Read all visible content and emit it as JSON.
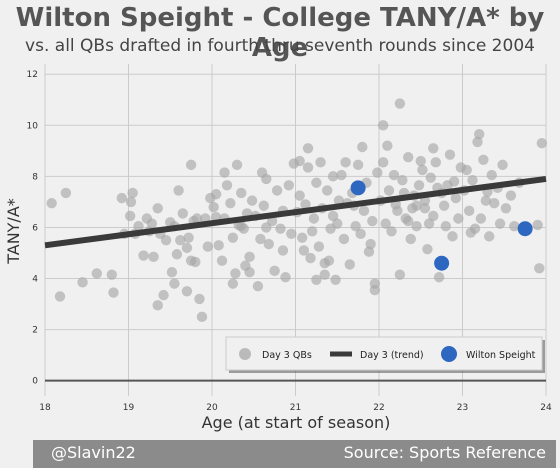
{
  "header": {
    "title": "Wilton Speight - College TANY/A* by Age",
    "subtitle": "vs. all QBs drafted in fourth thru seventh rounds since 2004"
  },
  "footer": {
    "handle": "@Slavin22",
    "source": "Source: Sports Reference"
  },
  "colors": {
    "background": "#f0f0f0",
    "scatter": "#a8a8a8",
    "trend": "#3a3a3a",
    "highlight": "#2e67c0",
    "grid": "#cbcbcb"
  },
  "chart_data": {
    "type": "scatter",
    "xlabel": "Age (at start of season)",
    "ylabel": "TANY/A*",
    "xlim": [
      18,
      24
    ],
    "ylim": [
      -0.6,
      12.4
    ],
    "xticks": [
      18,
      19,
      20,
      21,
      22,
      23,
      24
    ],
    "yticks": [
      0,
      2,
      4,
      6,
      8,
      10,
      12
    ],
    "grid": true,
    "legend_position": "bottom-right",
    "legend": [
      "Day 3 QBs",
      "Day 3 (trend)",
      "Wilton Speight"
    ],
    "trend": {
      "x": [
        18,
        24
      ],
      "y": [
        5.3,
        7.9
      ]
    },
    "highlight": {
      "name": "Wilton Speight",
      "points": [
        [
          21.75,
          7.55
        ],
        [
          22.75,
          4.6
        ],
        [
          23.75,
          5.95
        ]
      ]
    },
    "series": [
      {
        "name": "Day 3 QBs",
        "points": [
          [
            18.08,
            6.95
          ],
          [
            18.18,
            3.3
          ],
          [
            18.25,
            7.35
          ],
          [
            18.45,
            3.85
          ],
          [
            18.62,
            4.2
          ],
          [
            18.82,
            3.45
          ],
          [
            18.8,
            4.15
          ],
          [
            18.92,
            7.15
          ],
          [
            18.95,
            5.75
          ],
          [
            19.02,
            6.45
          ],
          [
            19.03,
            7.0
          ],
          [
            19.05,
            7.35
          ],
          [
            19.08,
            5.75
          ],
          [
            19.12,
            6.05
          ],
          [
            19.18,
            4.9
          ],
          [
            19.22,
            6.35
          ],
          [
            19.25,
            5.85
          ],
          [
            19.28,
            6.15
          ],
          [
            19.3,
            4.85
          ],
          [
            19.35,
            6.75
          ],
          [
            19.38,
            5.75
          ],
          [
            19.35,
            2.95
          ],
          [
            19.42,
            3.35
          ],
          [
            19.45,
            5.5
          ],
          [
            19.5,
            6.2
          ],
          [
            19.52,
            4.25
          ],
          [
            19.55,
            3.8
          ],
          [
            19.58,
            4.95
          ],
          [
            19.62,
            5.5
          ],
          [
            19.65,
            6.55
          ],
          [
            19.6,
            7.45
          ],
          [
            19.7,
            5.2
          ],
          [
            19.7,
            3.5
          ],
          [
            19.75,
            4.7
          ],
          [
            19.78,
            6.25
          ],
          [
            19.82,
            6.35
          ],
          [
            19.85,
            3.2
          ],
          [
            19.88,
            2.5
          ],
          [
            19.92,
            6.35
          ],
          [
            19.95,
            5.25
          ],
          [
            19.98,
            7.15
          ],
          [
            19.75,
            8.45
          ],
          [
            19.72,
            5.6
          ],
          [
            19.8,
            4.65
          ],
          [
            19.55,
            6.05
          ],
          [
            20.02,
            6.8
          ],
          [
            20.05,
            7.3
          ],
          [
            20.08,
            5.3
          ],
          [
            20.12,
            4.7
          ],
          [
            20.15,
            6.35
          ],
          [
            20.18,
            7.65
          ],
          [
            20.22,
            6.95
          ],
          [
            20.25,
            5.6
          ],
          [
            20.28,
            4.2
          ],
          [
            20.32,
            6.1
          ],
          [
            20.35,
            7.35
          ],
          [
            20.38,
            5.95
          ],
          [
            20.42,
            6.55
          ],
          [
            20.45,
            4.85
          ],
          [
            20.48,
            7.05
          ],
          [
            20.52,
            6.45
          ],
          [
            20.55,
            3.7
          ],
          [
            20.58,
            5.55
          ],
          [
            20.62,
            6.85
          ],
          [
            20.65,
            7.9
          ],
          [
            20.68,
            5.35
          ],
          [
            20.72,
            6.25
          ],
          [
            20.75,
            4.3
          ],
          [
            20.78,
            7.45
          ],
          [
            20.82,
            5.95
          ],
          [
            20.85,
            6.65
          ],
          [
            20.88,
            4.05
          ],
          [
            20.92,
            7.65
          ],
          [
            20.95,
            5.75
          ],
          [
            20.98,
            8.5
          ],
          [
            20.15,
            8.15
          ],
          [
            20.25,
            3.8
          ],
          [
            20.35,
            6.05
          ],
          [
            20.45,
            4.25
          ],
          [
            20.65,
            6.0
          ],
          [
            20.85,
            5.1
          ],
          [
            20.3,
            8.45
          ],
          [
            20.6,
            8.15
          ],
          [
            20.05,
            6.4
          ],
          [
            20.4,
            4.5
          ],
          [
            21.02,
            6.6
          ],
          [
            21.05,
            7.25
          ],
          [
            21.08,
            5.6
          ],
          [
            21.12,
            6.9
          ],
          [
            21.15,
            8.35
          ],
          [
            21.18,
            4.8
          ],
          [
            21.22,
            6.35
          ],
          [
            21.25,
            7.75
          ],
          [
            21.28,
            5.25
          ],
          [
            21.32,
            6.75
          ],
          [
            21.35,
            4.15
          ],
          [
            21.38,
            7.45
          ],
          [
            21.42,
            5.95
          ],
          [
            21.45,
            6.45
          ],
          [
            21.48,
            3.95
          ],
          [
            21.52,
            7.05
          ],
          [
            21.55,
            8.05
          ],
          [
            21.58,
            5.55
          ],
          [
            21.62,
            6.95
          ],
          [
            21.65,
            4.55
          ],
          [
            21.68,
            7.35
          ],
          [
            21.72,
            6.05
          ],
          [
            21.75,
            8.45
          ],
          [
            21.78,
            5.75
          ],
          [
            21.82,
            6.65
          ],
          [
            21.85,
            7.75
          ],
          [
            21.88,
            5.05
          ],
          [
            21.92,
            6.25
          ],
          [
            21.95,
            3.55
          ],
          [
            21.98,
            8.15
          ],
          [
            21.1,
            5.1
          ],
          [
            21.15,
            9.1
          ],
          [
            21.2,
            5.85
          ],
          [
            21.3,
            8.55
          ],
          [
            21.4,
            4.7
          ],
          [
            21.5,
            6.15
          ],
          [
            21.6,
            8.55
          ],
          [
            21.7,
            6.85
          ],
          [
            21.8,
            9.15
          ],
          [
            21.9,
            5.35
          ],
          [
            21.05,
            8.6
          ],
          [
            21.35,
            4.6
          ],
          [
            21.45,
            8.0
          ],
          [
            21.25,
            3.95
          ],
          [
            21.95,
            3.8
          ],
          [
            22.02,
            7.05
          ],
          [
            22.05,
            8.55
          ],
          [
            22.08,
            6.15
          ],
          [
            22.12,
            7.45
          ],
          [
            22.15,
            5.85
          ],
          [
            22.18,
            8.05
          ],
          [
            22.22,
            6.65
          ],
          [
            22.25,
            10.85
          ],
          [
            22.28,
            7.85
          ],
          [
            22.32,
            6.35
          ],
          [
            22.35,
            8.75
          ],
          [
            22.38,
            5.55
          ],
          [
            22.42,
            7.25
          ],
          [
            22.45,
            6.05
          ],
          [
            22.48,
            7.65
          ],
          [
            22.52,
            8.25
          ],
          [
            22.55,
            6.75
          ],
          [
            22.58,
            5.15
          ],
          [
            22.62,
            7.95
          ],
          [
            22.65,
            6.45
          ],
          [
            22.68,
            8.55
          ],
          [
            22.72,
            4.05
          ],
          [
            22.75,
            7.35
          ],
          [
            22.78,
            6.85
          ],
          [
            22.82,
            7.65
          ],
          [
            22.85,
            8.85
          ],
          [
            22.88,
            5.65
          ],
          [
            22.92,
            7.15
          ],
          [
            22.95,
            6.35
          ],
          [
            22.98,
            8.35
          ],
          [
            22.1,
            9.2
          ],
          [
            22.2,
            6.9
          ],
          [
            22.3,
            7.35
          ],
          [
            22.4,
            6.75
          ],
          [
            22.5,
            8.6
          ],
          [
            22.6,
            6.15
          ],
          [
            22.7,
            7.55
          ],
          [
            22.8,
            6.05
          ],
          [
            22.9,
            7.8
          ],
          [
            22.05,
            10.0
          ],
          [
            22.25,
            4.15
          ],
          [
            22.35,
            6.25
          ],
          [
            22.45,
            6.85
          ],
          [
            22.55,
            7.05
          ],
          [
            22.65,
            9.1
          ],
          [
            23.02,
            7.45
          ],
          [
            23.05,
            8.25
          ],
          [
            23.08,
            6.65
          ],
          [
            23.12,
            7.85
          ],
          [
            23.15,
            5.95
          ],
          [
            23.18,
            9.35
          ],
          [
            23.22,
            6.35
          ],
          [
            23.25,
            8.65
          ],
          [
            23.28,
            7.05
          ],
          [
            23.32,
            5.65
          ],
          [
            23.35,
            8.05
          ],
          [
            23.38,
            6.95
          ],
          [
            23.42,
            7.55
          ],
          [
            23.45,
            6.15
          ],
          [
            23.48,
            8.45
          ],
          [
            23.52,
            6.75
          ],
          [
            23.58,
            7.25
          ],
          [
            23.62,
            6.05
          ],
          [
            23.68,
            7.75
          ],
          [
            23.95,
            9.3
          ],
          [
            23.92,
            4.4
          ],
          [
            23.9,
            6.1
          ],
          [
            23.2,
            9.65
          ],
          [
            23.1,
            5.8
          ],
          [
            23.3,
            7.4
          ]
        ]
      }
    ]
  }
}
